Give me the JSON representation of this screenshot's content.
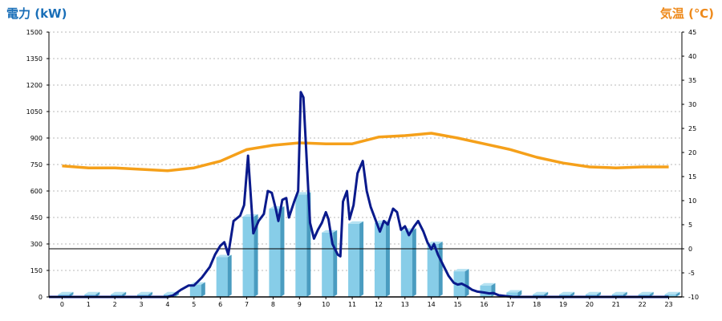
{
  "chart_data": {
    "type": "bar",
    "left_axis": {
      "label": "電力 (kW)",
      "color": "#1a6fb8",
      "ylim": [
        0,
        1500
      ],
      "ticks": [
        0,
        150,
        300,
        450,
        600,
        750,
        900,
        1050,
        1200,
        1350,
        1500
      ]
    },
    "right_axis": {
      "label": "気温 (℃)",
      "color": "#ee8a1c",
      "ylim": [
        -10,
        45
      ],
      "ticks": [
        -10,
        -5,
        0,
        5,
        10,
        15,
        20,
        25,
        30,
        35,
        40,
        45
      ]
    },
    "categories": [
      "0",
      "1",
      "2",
      "3",
      "4",
      "5",
      "6",
      "7",
      "8",
      "9",
      "10",
      "11",
      "12",
      "13",
      "14",
      "15",
      "16",
      "17",
      "18",
      "19",
      "20",
      "21",
      "22",
      "23"
    ],
    "grid": true,
    "zero_line": 0,
    "bar_series": {
      "color": "#87cde8",
      "values": [
        15,
        15,
        15,
        15,
        15,
        70,
        225,
        455,
        500,
        580,
        365,
        415,
        420,
        375,
        300,
        145,
        65,
        25,
        15,
        15,
        15,
        15,
        15,
        15
      ]
    },
    "power_line": {
      "color": "#0a1a8c",
      "points": [
        [
          -0.5,
          0
        ],
        [
          0,
          0
        ],
        [
          1,
          0
        ],
        [
          2,
          0
        ],
        [
          3,
          0
        ],
        [
          4,
          0
        ],
        [
          4.2,
          8
        ],
        [
          4.5,
          40
        ],
        [
          4.8,
          65
        ],
        [
          5.0,
          65
        ],
        [
          5.3,
          110
        ],
        [
          5.6,
          170
        ],
        [
          5.8,
          240
        ],
        [
          6.0,
          290
        ],
        [
          6.15,
          310
        ],
        [
          6.3,
          240
        ],
        [
          6.5,
          430
        ],
        [
          6.75,
          460
        ],
        [
          6.9,
          520
        ],
        [
          7.05,
          800
        ],
        [
          7.25,
          360
        ],
        [
          7.45,
          430
        ],
        [
          7.65,
          470
        ],
        [
          7.8,
          600
        ],
        [
          7.95,
          590
        ],
        [
          8.1,
          500
        ],
        [
          8.2,
          430
        ],
        [
          8.35,
          550
        ],
        [
          8.5,
          560
        ],
        [
          8.6,
          450
        ],
        [
          8.8,
          540
        ],
        [
          8.95,
          600
        ],
        [
          9.05,
          1160
        ],
        [
          9.15,
          1130
        ],
        [
          9.3,
          700
        ],
        [
          9.4,
          420
        ],
        [
          9.55,
          330
        ],
        [
          9.7,
          380
        ],
        [
          9.85,
          420
        ],
        [
          10.0,
          480
        ],
        [
          10.1,
          440
        ],
        [
          10.25,
          300
        ],
        [
          10.45,
          240
        ],
        [
          10.55,
          230
        ],
        [
          10.65,
          540
        ],
        [
          10.8,
          600
        ],
        [
          10.9,
          440
        ],
        [
          11.05,
          520
        ],
        [
          11.2,
          700
        ],
        [
          11.4,
          770
        ],
        [
          11.55,
          600
        ],
        [
          11.7,
          510
        ],
        [
          11.9,
          430
        ],
        [
          12.05,
          370
        ],
        [
          12.2,
          430
        ],
        [
          12.35,
          410
        ],
        [
          12.55,
          500
        ],
        [
          12.7,
          480
        ],
        [
          12.85,
          380
        ],
        [
          13.0,
          400
        ],
        [
          13.15,
          350
        ],
        [
          13.35,
          400
        ],
        [
          13.5,
          430
        ],
        [
          13.7,
          370
        ],
        [
          13.85,
          310
        ],
        [
          14.0,
          270
        ],
        [
          14.1,
          300
        ],
        [
          14.25,
          240
        ],
        [
          14.45,
          180
        ],
        [
          14.65,
          120
        ],
        [
          14.85,
          80
        ],
        [
          15.0,
          70
        ],
        [
          15.15,
          75
        ],
        [
          15.35,
          60
        ],
        [
          15.55,
          40
        ],
        [
          15.75,
          30
        ],
        [
          16.0,
          25
        ],
        [
          16.2,
          20
        ],
        [
          16.35,
          22
        ],
        [
          16.55,
          10
        ],
        [
          16.8,
          5
        ],
        [
          17.1,
          0
        ],
        [
          18,
          0
        ],
        [
          19,
          0
        ],
        [
          20,
          0
        ],
        [
          21,
          0
        ],
        [
          22,
          0
        ],
        [
          23,
          0
        ]
      ]
    },
    "temperature_series": {
      "color": "#f5a01a",
      "values": [
        17.2,
        16.8,
        16.8,
        16.5,
        16.2,
        16.8,
        18.2,
        20.6,
        21.5,
        22.0,
        21.8,
        21.8,
        23.2,
        23.5,
        24.0,
        23.0,
        21.8,
        20.6,
        19.0,
        17.8,
        17.0,
        16.8,
        17.0,
        17.0
      ]
    }
  }
}
